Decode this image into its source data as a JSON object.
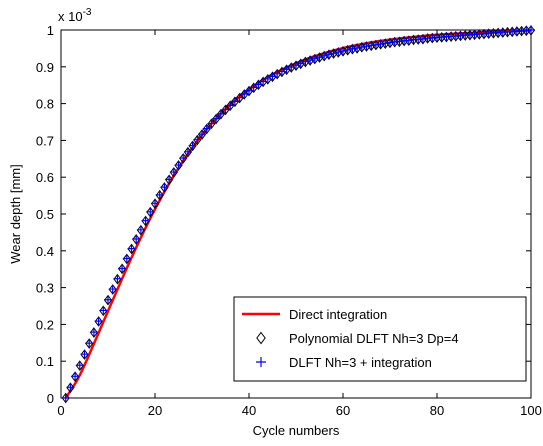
{
  "chart_data": {
    "type": "line",
    "title": "",
    "xlabel": "Cycle numbers",
    "ylabel": "Wear depth [mm]",
    "y_multiplier_label": "x 10",
    "y_multiplier_exponent": "-3",
    "xlim": [
      0,
      100
    ],
    "ylim": [
      0,
      1
    ],
    "xticks": [
      0,
      20,
      40,
      60,
      80,
      100
    ],
    "xtick_labels": [
      "0",
      "20",
      "40",
      "60",
      "80",
      "100"
    ],
    "yticks": [
      0,
      0.1,
      0.2,
      0.3,
      0.4,
      0.5,
      0.6,
      0.7,
      0.8,
      0.9,
      1
    ],
    "ytick_labels": [
      "0",
      "0.1",
      "0.2",
      "0.3",
      "0.4",
      "0.5",
      "0.6",
      "0.7",
      "0.8",
      "0.9",
      "1"
    ],
    "grid": false,
    "legend_position": "bottom-right",
    "series": [
      {
        "name": "Direct integration",
        "style": "line",
        "color": "#ff0000",
        "x": [
          1,
          4,
          8,
          12,
          16,
          20,
          24,
          28,
          32,
          36,
          40,
          44,
          48,
          52,
          56,
          60,
          65,
          70,
          75,
          80,
          85,
          90,
          95,
          100
        ],
        "y": [
          0.0,
          0.062,
          0.177,
          0.295,
          0.409,
          0.513,
          0.604,
          0.681,
          0.745,
          0.797,
          0.838,
          0.872,
          0.898,
          0.92,
          0.937,
          0.951,
          0.964,
          0.974,
          0.981,
          0.987,
          0.991,
          0.994,
          0.997,
          0.999
        ]
      },
      {
        "name": "Polynomial DLFT  Nh=3 Dp=4",
        "style": "diamond",
        "color": "#000000",
        "x": [
          1,
          2,
          3,
          4,
          5,
          6,
          7,
          8,
          9,
          10,
          11,
          12,
          13,
          14,
          15,
          16,
          17,
          18,
          19,
          20,
          21,
          22,
          23,
          24,
          25,
          26,
          27,
          28,
          29,
          30,
          31,
          32,
          33,
          34,
          35,
          36,
          37,
          38,
          39,
          40,
          41,
          42,
          43,
          44,
          45,
          46,
          47,
          48,
          49,
          50,
          51,
          52,
          53,
          54,
          55,
          56,
          57,
          58,
          59,
          60,
          61,
          62,
          63,
          64,
          65,
          66,
          67,
          68,
          69,
          70,
          71,
          72,
          73,
          74,
          75,
          76,
          77,
          78,
          79,
          80,
          81,
          82,
          83,
          84,
          85,
          86,
          87,
          88,
          89,
          90,
          91,
          92,
          93,
          94,
          95,
          96,
          97,
          98,
          99,
          100
        ],
        "y": [
          0.0,
          0.028,
          0.058,
          0.088,
          0.118,
          0.148,
          0.178,
          0.208,
          0.237,
          0.266,
          0.295,
          0.323,
          0.351,
          0.378,
          0.405,
          0.431,
          0.456,
          0.481,
          0.505,
          0.528,
          0.551,
          0.572,
          0.593,
          0.613,
          0.632,
          0.651,
          0.668,
          0.685,
          0.701,
          0.716,
          0.731,
          0.745,
          0.758,
          0.771,
          0.783,
          0.794,
          0.805,
          0.815,
          0.825,
          0.834,
          0.843,
          0.851,
          0.859,
          0.866,
          0.873,
          0.88,
          0.886,
          0.892,
          0.898,
          0.903,
          0.908,
          0.913,
          0.917,
          0.921,
          0.925,
          0.929,
          0.933,
          0.936,
          0.939,
          0.942,
          0.945,
          0.948,
          0.95,
          0.953,
          0.955,
          0.957,
          0.959,
          0.961,
          0.963,
          0.965,
          0.967,
          0.968,
          0.97,
          0.971,
          0.973,
          0.974,
          0.975,
          0.977,
          0.978,
          0.979,
          0.98,
          0.981,
          0.982,
          0.983,
          0.984,
          0.985,
          0.986,
          0.987,
          0.988,
          0.989,
          0.99,
          0.991,
          0.992,
          0.993,
          0.994,
          0.995,
          0.996,
          0.997,
          0.998,
          0.999
        ]
      },
      {
        "name": "DLFT Nh=3 + integration",
        "style": "plus",
        "color": "#0000ff",
        "x": [
          1,
          2,
          3,
          4,
          5,
          6,
          7,
          8,
          9,
          10,
          11,
          12,
          13,
          14,
          15,
          16,
          17,
          18,
          19,
          20,
          21,
          22,
          23,
          24,
          25,
          26,
          27,
          28,
          29,
          30,
          31,
          32,
          33,
          34,
          35,
          36,
          37,
          38,
          39,
          40,
          41,
          42,
          43,
          44,
          45,
          46,
          47,
          48,
          49,
          50,
          51,
          52,
          53,
          54,
          55,
          56,
          57,
          58,
          59,
          60,
          61,
          62,
          63,
          64,
          65,
          66,
          67,
          68,
          69,
          70,
          71,
          72,
          73,
          74,
          75,
          76,
          77,
          78,
          79,
          80,
          81,
          82,
          83,
          84,
          85,
          86,
          87,
          88,
          89,
          90,
          91,
          92,
          93,
          94,
          95,
          96,
          97,
          98,
          99,
          100
        ],
        "y": [
          0.0,
          0.029,
          0.059,
          0.089,
          0.119,
          0.149,
          0.179,
          0.209,
          0.238,
          0.267,
          0.296,
          0.324,
          0.352,
          0.379,
          0.406,
          0.432,
          0.457,
          0.482,
          0.506,
          0.529,
          0.552,
          0.573,
          0.594,
          0.614,
          0.633,
          0.652,
          0.669,
          0.686,
          0.702,
          0.717,
          0.732,
          0.746,
          0.759,
          0.772,
          0.784,
          0.795,
          0.806,
          0.816,
          0.826,
          0.835,
          0.844,
          0.852,
          0.86,
          0.867,
          0.874,
          0.881,
          0.887,
          0.893,
          0.899,
          0.904,
          0.909,
          0.914,
          0.918,
          0.922,
          0.926,
          0.93,
          0.934,
          0.937,
          0.94,
          0.943,
          0.946,
          0.949,
          0.951,
          0.954,
          0.956,
          0.958,
          0.96,
          0.962,
          0.964,
          0.966,
          0.968,
          0.969,
          0.971,
          0.972,
          0.974,
          0.975,
          0.976,
          0.978,
          0.979,
          0.98,
          0.981,
          0.982,
          0.983,
          0.984,
          0.985,
          0.986,
          0.987,
          0.988,
          0.989,
          0.99,
          0.991,
          0.992,
          0.993,
          0.994,
          0.995,
          0.996,
          0.997,
          0.998,
          0.999,
          1.0
        ]
      }
    ]
  }
}
